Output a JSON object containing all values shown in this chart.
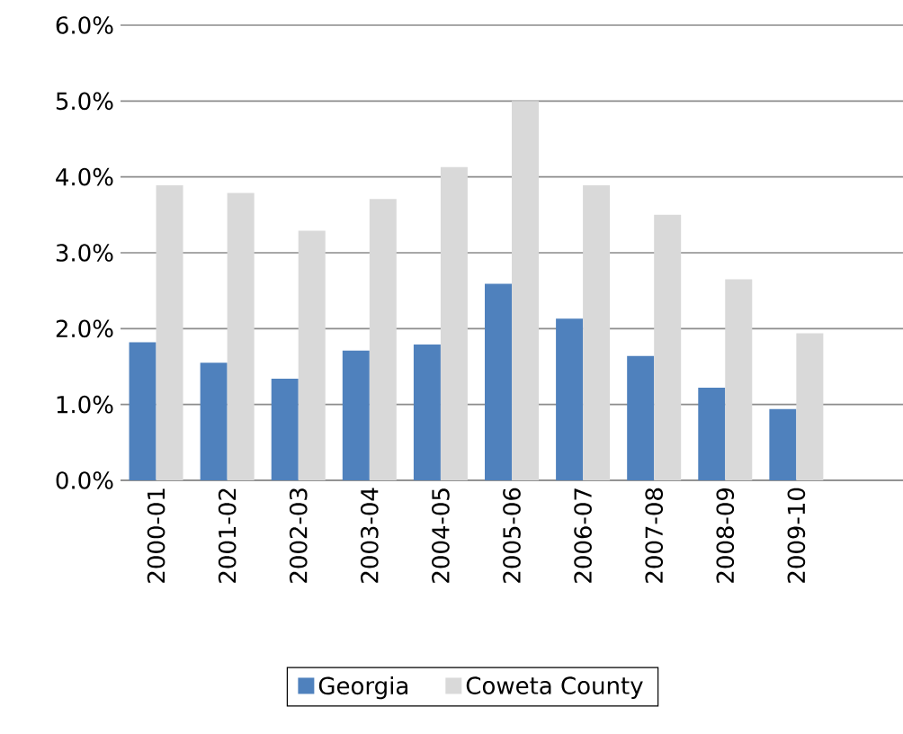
{
  "chart_data": {
    "type": "bar",
    "categories": [
      "2000-01",
      "2001-02",
      "2002-03",
      "2003-04",
      "2004-05",
      "2005-06",
      "2006-07",
      "2007-08",
      "2008-09",
      "2009-10",
      null
    ],
    "series": [
      {
        "name": "Georgia",
        "color": "#4f81bd",
        "values": [
          1.82,
          1.55,
          1.34,
          1.71,
          1.79,
          2.59,
          2.13,
          1.64,
          1.22,
          0.94,
          null
        ]
      },
      {
        "name": "Coweta County",
        "color": "#d9d9d9",
        "values": [
          3.89,
          3.79,
          3.29,
          3.71,
          4.13,
          5.0,
          3.89,
          3.5,
          2.65,
          1.94,
          null
        ]
      }
    ],
    "ylim": [
      0,
      6
    ],
    "yticks": [
      {
        "value": 0,
        "label": "0.0%"
      },
      {
        "value": 1,
        "label": "1.0%"
      },
      {
        "value": 2,
        "label": "2.0%"
      },
      {
        "value": 3,
        "label": "3.0%"
      },
      {
        "value": 4,
        "label": "4.0%"
      },
      {
        "value": 5,
        "label": "5.0%"
      },
      {
        "value": 6,
        "label": "6.0%"
      }
    ],
    "grid": "y",
    "legend": "bottom"
  }
}
